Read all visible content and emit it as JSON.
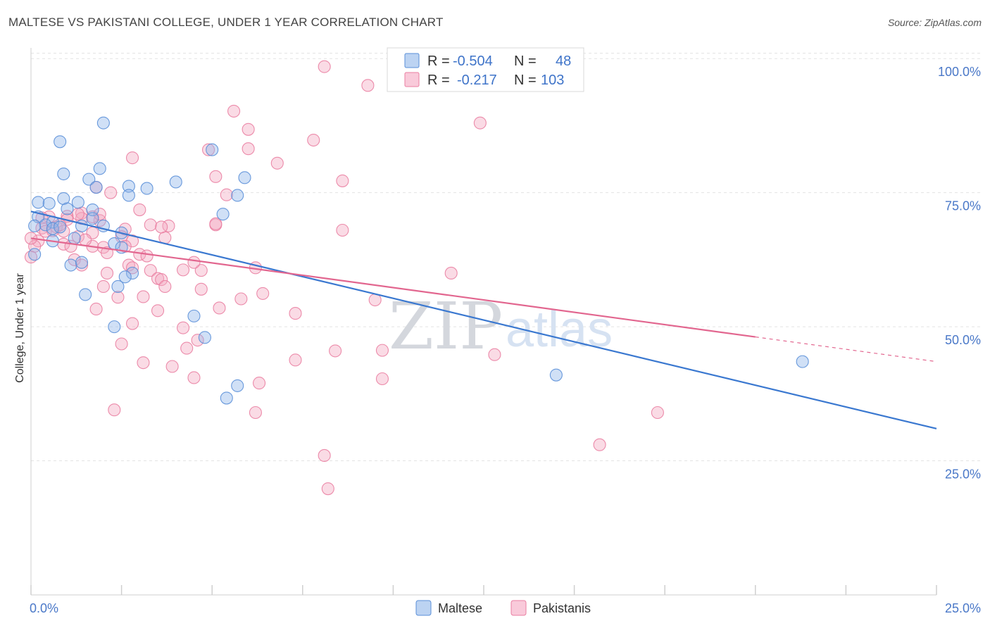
{
  "title": "MALTESE VS PAKISTANI COLLEGE, UNDER 1 YEAR CORRELATION CHART",
  "source": "Source: ZipAtlas.com",
  "watermark": {
    "zip": "ZIP",
    "atlas": "atlas"
  },
  "legend": {
    "rows": [
      {
        "r_label": "R =",
        "r_value": "-0.504",
        "n_label": "N =",
        "n_value": "48",
        "color": "#8fb5ea"
      },
      {
        "r_label": "R =",
        "r_value": "-0.217",
        "n_label": "N =",
        "n_value": "103",
        "color": "#f4a9c2"
      }
    ]
  },
  "bottom_legend": [
    {
      "label": "Maltese",
      "color": "#8fb5ea"
    },
    {
      "label": "Pakistanis",
      "color": "#f4a9c2"
    }
  ],
  "chart_data": {
    "type": "scatter",
    "title": "MALTESE VS PAKISTANI COLLEGE, UNDER 1 YEAR CORRELATION CHART",
    "xlabel": "",
    "ylabel": "College, Under 1 year",
    "xlim": [
      0,
      25
    ],
    "ylim": [
      0,
      102
    ],
    "x_tick_labels": [
      "0.0%",
      "25.0%"
    ],
    "y_ticks": [
      {
        "value": 100,
        "label": "100.0%"
      },
      {
        "value": 75,
        "label": "75.0%"
      },
      {
        "value": 50,
        "label": "50.0%"
      },
      {
        "value": 25,
        "label": "25.0%"
      }
    ],
    "grid": true,
    "legend_position": "top-center",
    "series": [
      {
        "name": "Maltese",
        "color": "#8fb5ea",
        "edge_color": "#5a8fd8",
        "trend_color": "#3a78d0",
        "r": -0.504,
        "n": 48,
        "trend": {
          "x": [
            0,
            25
          ],
          "y": [
            71.5,
            31.0
          ],
          "dashed_from": null
        },
        "points": [
          [
            2.0,
            88
          ],
          [
            0.8,
            84.5
          ],
          [
            1.9,
            79.5
          ],
          [
            0.9,
            78.5
          ],
          [
            1.6,
            77.5
          ],
          [
            4.0,
            77.0
          ],
          [
            5.9,
            77.8
          ],
          [
            1.8,
            76.0
          ],
          [
            2.7,
            76.2
          ],
          [
            3.2,
            75.8
          ],
          [
            5.0,
            83.0
          ],
          [
            2.7,
            74.5
          ],
          [
            5.7,
            74.5
          ],
          [
            0.2,
            73.2
          ],
          [
            0.5,
            73.0
          ],
          [
            0.9,
            73.9
          ],
          [
            1.3,
            73.2
          ],
          [
            1.0,
            72.0
          ],
          [
            1.7,
            71.8
          ],
          [
            5.3,
            71.0
          ],
          [
            0.2,
            70.5
          ],
          [
            0.6,
            69.5
          ],
          [
            1.7,
            70.2
          ],
          [
            0.4,
            69.0
          ],
          [
            0.6,
            68.3
          ],
          [
            0.8,
            68.6
          ],
          [
            0.1,
            68.8
          ],
          [
            1.4,
            68.8
          ],
          [
            2.0,
            68.8
          ],
          [
            2.5,
            67.5
          ],
          [
            1.2,
            66.5
          ],
          [
            0.6,
            66.0
          ],
          [
            2.3,
            65.5
          ],
          [
            2.5,
            64.8
          ],
          [
            0.1,
            63.5
          ],
          [
            1.1,
            61.5
          ],
          [
            1.4,
            62.0
          ],
          [
            2.8,
            60.0
          ],
          [
            2.6,
            59.3
          ],
          [
            2.4,
            57.5
          ],
          [
            1.5,
            56.0
          ],
          [
            4.5,
            52.0
          ],
          [
            2.3,
            50.0
          ],
          [
            4.8,
            48.0
          ],
          [
            5.7,
            39.0
          ],
          [
            5.4,
            36.7
          ],
          [
            14.5,
            41.0
          ],
          [
            21.3,
            43.5
          ]
        ]
      },
      {
        "name": "Pakistanis",
        "color": "#f4a9c2",
        "edge_color": "#ea7fa2",
        "trend_color": "#e2668f",
        "r": -0.217,
        "n": 103,
        "trend": {
          "x": [
            0,
            25
          ],
          "y": [
            66.5,
            43.5
          ],
          "dashed_from": 20.0
        },
        "points": [
          [
            11.1,
            100.0
          ],
          [
            8.1,
            98.5
          ],
          [
            9.3,
            95.0
          ],
          [
            5.6,
            90.2
          ],
          [
            12.4,
            88.0
          ],
          [
            6.0,
            86.8
          ],
          [
            7.8,
            84.8
          ],
          [
            6.0,
            83.2
          ],
          [
            4.9,
            83.0
          ],
          [
            2.8,
            81.5
          ],
          [
            6.8,
            80.5
          ],
          [
            5.1,
            78.0
          ],
          [
            8.6,
            77.2
          ],
          [
            1.8,
            76.0
          ],
          [
            2.2,
            75.0
          ],
          [
            5.4,
            74.6
          ],
          [
            3.0,
            71.8
          ],
          [
            1.4,
            71.2
          ],
          [
            1.0,
            70.6
          ],
          [
            0.5,
            70.5
          ],
          [
            1.0,
            70.0
          ],
          [
            1.4,
            70.2
          ],
          [
            1.9,
            69.8
          ],
          [
            3.3,
            69.0
          ],
          [
            3.8,
            68.8
          ],
          [
            5.1,
            69.0
          ],
          [
            8.6,
            68.0
          ],
          [
            2.6,
            68.2
          ],
          [
            0.3,
            68.4
          ],
          [
            0.4,
            67.8
          ],
          [
            0.7,
            68.6
          ],
          [
            1.7,
            67.5
          ],
          [
            0.9,
            67.8
          ],
          [
            1.3,
            66.8
          ],
          [
            2.5,
            66.8
          ],
          [
            3.7,
            66.6
          ],
          [
            3.6,
            68.6
          ],
          [
            0.2,
            66.0
          ],
          [
            0.9,
            65.4
          ],
          [
            1.1,
            65.0
          ],
          [
            1.7,
            65.0
          ],
          [
            2.0,
            64.8
          ],
          [
            2.1,
            63.8
          ],
          [
            2.8,
            66.0
          ],
          [
            3.0,
            63.5
          ],
          [
            3.2,
            63.2
          ],
          [
            0.1,
            65.0
          ],
          [
            0.0,
            63.0
          ],
          [
            1.2,
            62.5
          ],
          [
            1.4,
            61.5
          ],
          [
            2.7,
            61.5
          ],
          [
            2.8,
            61.0
          ],
          [
            3.3,
            60.5
          ],
          [
            4.2,
            60.6
          ],
          [
            4.7,
            60.5
          ],
          [
            2.1,
            60.0
          ],
          [
            3.5,
            59.0
          ],
          [
            3.6,
            58.8
          ],
          [
            6.2,
            61.0
          ],
          [
            11.6,
            60.0
          ],
          [
            2.0,
            57.5
          ],
          [
            3.7,
            57.5
          ],
          [
            4.7,
            57.0
          ],
          [
            2.4,
            55.5
          ],
          [
            3.1,
            55.6
          ],
          [
            5.8,
            55.2
          ],
          [
            6.4,
            56.2
          ],
          [
            9.5,
            55.0
          ],
          [
            1.8,
            53.3
          ],
          [
            3.5,
            53.0
          ],
          [
            5.2,
            53.5
          ],
          [
            7.3,
            52.5
          ],
          [
            4.2,
            49.8
          ],
          [
            2.8,
            50.6
          ],
          [
            4.6,
            47.5
          ],
          [
            4.3,
            46.0
          ],
          [
            2.5,
            46.8
          ],
          [
            8.4,
            45.5
          ],
          [
            9.7,
            45.6
          ],
          [
            12.8,
            44.8
          ],
          [
            3.1,
            43.3
          ],
          [
            7.3,
            43.8
          ],
          [
            3.9,
            42.6
          ],
          [
            4.5,
            40.5
          ],
          [
            9.7,
            40.3
          ],
          [
            6.3,
            39.5
          ],
          [
            2.3,
            34.5
          ],
          [
            6.2,
            34.0
          ],
          [
            17.3,
            34.0
          ],
          [
            15.7,
            28.0
          ],
          [
            8.1,
            26.0
          ],
          [
            8.2,
            19.8
          ],
          [
            5.1,
            69.2
          ],
          [
            1.7,
            70.5
          ],
          [
            0.6,
            67.9
          ],
          [
            2.6,
            65.0
          ],
          [
            1.5,
            66.2
          ],
          [
            0.8,
            69.0
          ],
          [
            1.9,
            71.0
          ],
          [
            0.3,
            70.3
          ],
          [
            4.5,
            62.0
          ],
          [
            1.3,
            71.0
          ],
          [
            0.0,
            66.5
          ]
        ]
      }
    ]
  }
}
